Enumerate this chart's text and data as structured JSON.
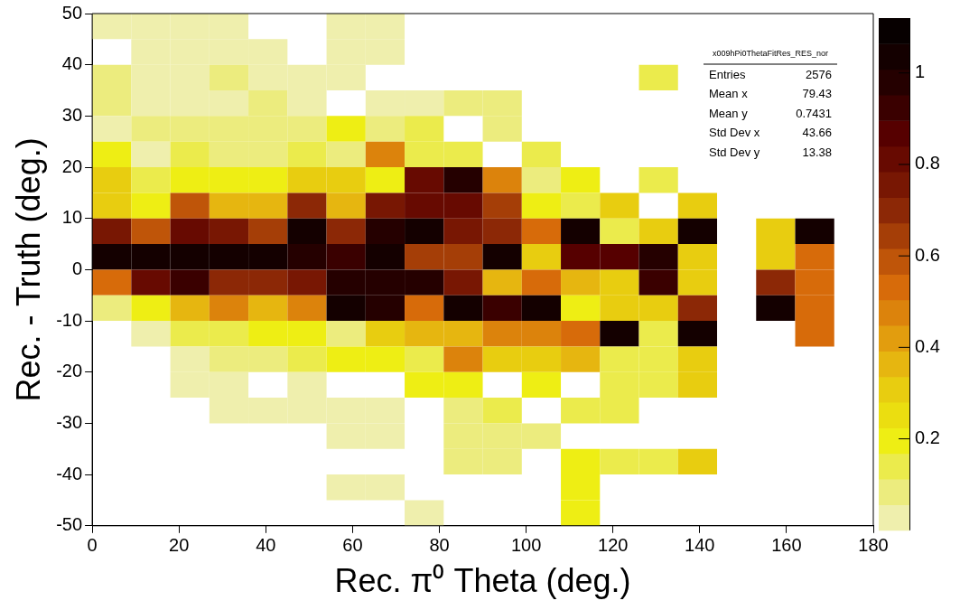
{
  "chart_data": {
    "type": "heatmap",
    "xlabel": "Rec. π⁰ Theta (deg.)",
    "ylabel": "Rec. - Truth (deg.)",
    "xlim": [
      0,
      180
    ],
    "ylim": [
      -50,
      50
    ],
    "xticks": [
      0,
      20,
      40,
      60,
      80,
      100,
      120,
      140,
      160,
      180
    ],
    "yticks": [
      -50,
      -40,
      -30,
      -20,
      -10,
      0,
      10,
      20,
      30,
      40,
      50
    ],
    "clim": [
      0,
      1.12
    ],
    "cticks": [
      0.2,
      0.4,
      0.6,
      0.8,
      1
    ],
    "grid": false,
    "legend": false,
    "annotations": [
      "x009hPi0ThetaFitRes_RES_nor",
      "Entries 2576",
      "Mean x 79.43",
      "Mean y 0.7431",
      "Std Dev x 43.66",
      "Std Dev y 13.38"
    ],
    "cells": [
      [
        0.03,
        0.03,
        0.03,
        0.03,
        null,
        null,
        0.03,
        0.03,
        null,
        null,
        null,
        null,
        null,
        null,
        null,
        null,
        null,
        null,
        null,
        null
      ],
      [
        null,
        0.03,
        0.03,
        0.03,
        0.03,
        null,
        0.03,
        0.03,
        null,
        null,
        null,
        null,
        null,
        null,
        null,
        null,
        null,
        null,
        null,
        null
      ],
      [
        0.08,
        0.03,
        0.03,
        0.08,
        0.03,
        0.03,
        0.03,
        null,
        null,
        null,
        null,
        null,
        null,
        null,
        0.14,
        null,
        null,
        null,
        null,
        null
      ],
      [
        0.1,
        0.03,
        0.03,
        0.03,
        0.08,
        0.03,
        null,
        0.03,
        0.03,
        0.08,
        0.08,
        null,
        null,
        null,
        null,
        null,
        null,
        null,
        null,
        null
      ],
      [
        0.03,
        0.08,
        0.08,
        0.08,
        0.08,
        0.08,
        0.22,
        0.08,
        0.12,
        null,
        0.1,
        null,
        null,
        null,
        null,
        null,
        null,
        null,
        null,
        null
      ],
      [
        0.18,
        0.03,
        0.12,
        0.1,
        0.1,
        0.16,
        0.1,
        0.45,
        0.12,
        0.16,
        null,
        0.12,
        null,
        null,
        null,
        null,
        null,
        null,
        null,
        null
      ],
      [
        0.32,
        0.12,
        0.2,
        0.18,
        0.18,
        0.3,
        0.3,
        0.2,
        0.84,
        0.98,
        0.45,
        0.08,
        0.2,
        null,
        0.12,
        null,
        null,
        null,
        null,
        null
      ],
      [
        0.32,
        0.2,
        0.6,
        0.38,
        0.38,
        0.72,
        0.38,
        0.76,
        0.84,
        0.84,
        0.66,
        0.2,
        0.14,
        0.32,
        null,
        0.32,
        null,
        null,
        null,
        null
      ],
      [
        0.76,
        0.6,
        0.84,
        0.76,
        0.64,
        1.05,
        0.68,
        0.98,
        1.05,
        0.76,
        0.7,
        0.55,
        1.05,
        0.14,
        0.32,
        1.05,
        null,
        0.32,
        1.05,
        null
      ],
      [
        1.03,
        1.03,
        1.03,
        1.03,
        1.03,
        0.96,
        0.9,
        1.03,
        0.64,
        0.64,
        1.03,
        0.32,
        0.88,
        0.88,
        0.98,
        0.32,
        null,
        0.32,
        0.55,
        null
      ],
      [
        0.55,
        0.84,
        0.9,
        0.7,
        0.7,
        0.76,
        0.96,
        0.98,
        0.96,
        0.76,
        0.38,
        0.55,
        0.38,
        0.32,
        0.9,
        0.32,
        null,
        0.7,
        0.55,
        null
      ],
      [
        0.1,
        0.2,
        0.38,
        0.45,
        0.38,
        0.45,
        1.05,
        0.98,
        0.55,
        1.05,
        0.9,
        1.05,
        0.2,
        0.32,
        0.32,
        0.68,
        null,
        1.05,
        0.55,
        null
      ],
      [
        null,
        0.03,
        0.14,
        0.12,
        0.18,
        0.18,
        0.1,
        0.32,
        0.38,
        0.38,
        0.5,
        0.5,
        0.55,
        1.05,
        0.14,
        1.05,
        null,
        null,
        0.55,
        null
      ],
      [
        null,
        null,
        0.05,
        0.1,
        0.1,
        0.12,
        0.18,
        0.2,
        0.16,
        0.45,
        0.32,
        0.32,
        0.38,
        0.14,
        0.14,
        0.32,
        null,
        null,
        null,
        null
      ],
      [
        null,
        null,
        0.05,
        0.05,
        null,
        0.05,
        null,
        null,
        0.2,
        0.18,
        null,
        0.2,
        null,
        0.14,
        0.14,
        0.32,
        null,
        null,
        null,
        null
      ],
      [
        null,
        null,
        null,
        0.05,
        0.05,
        0.05,
        0.05,
        0.05,
        null,
        0.1,
        0.12,
        null,
        0.12,
        0.12,
        null,
        null,
        null,
        null,
        null,
        null
      ],
      [
        null,
        null,
        null,
        null,
        null,
        null,
        0.05,
        0.05,
        null,
        0.1,
        0.08,
        0.08,
        null,
        null,
        null,
        null,
        null,
        null,
        null,
        null
      ],
      [
        null,
        null,
        null,
        null,
        null,
        null,
        null,
        null,
        null,
        0.1,
        0.08,
        null,
        0.2,
        0.14,
        0.14,
        0.32,
        null,
        null,
        null,
        null
      ],
      [
        null,
        null,
        null,
        null,
        null,
        null,
        0.03,
        0.03,
        null,
        null,
        null,
        null,
        0.2,
        null,
        null,
        null,
        null,
        null,
        null,
        null
      ],
      [
        null,
        null,
        null,
        null,
        null,
        null,
        null,
        null,
        0.05,
        null,
        null,
        null,
        0.2,
        null,
        null,
        null,
        null,
        null,
        null,
        null
      ]
    ]
  }
}
